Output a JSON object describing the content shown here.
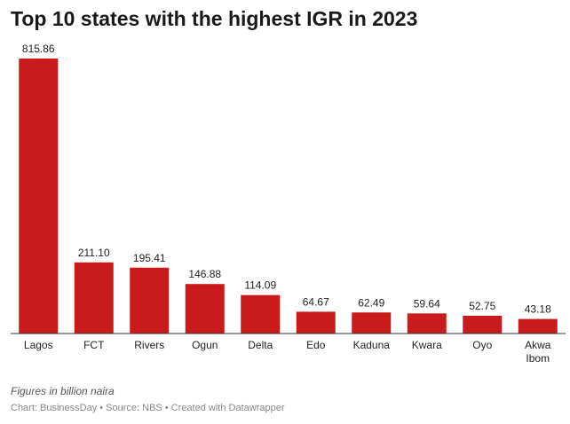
{
  "chart_data": {
    "type": "bar",
    "title": "Top 10 states with the highest IGR in 2023",
    "categories": [
      "Lagos",
      "FCT",
      "Rivers",
      "Ogun",
      "Delta",
      "Edo",
      "Kaduna",
      "Kwara",
      "Oyo",
      "Akwa Ibom"
    ],
    "values": [
      815.86,
      211.1,
      195.41,
      146.88,
      114.09,
      64.67,
      62.49,
      59.64,
      52.75,
      43.18
    ],
    "value_labels": [
      "815.86",
      "211.10",
      "195.41",
      "146.88",
      "114.09",
      "64.67",
      "62.49",
      "59.64",
      "52.75",
      "43.18"
    ],
    "ylim": [
      0,
      815.86
    ],
    "grid": false,
    "bar_color": "#c91b1b",
    "note": "Figures in billion naira",
    "credit": "Chart: BusinessDay • Source: NBS • Created with Datawrapper"
  }
}
